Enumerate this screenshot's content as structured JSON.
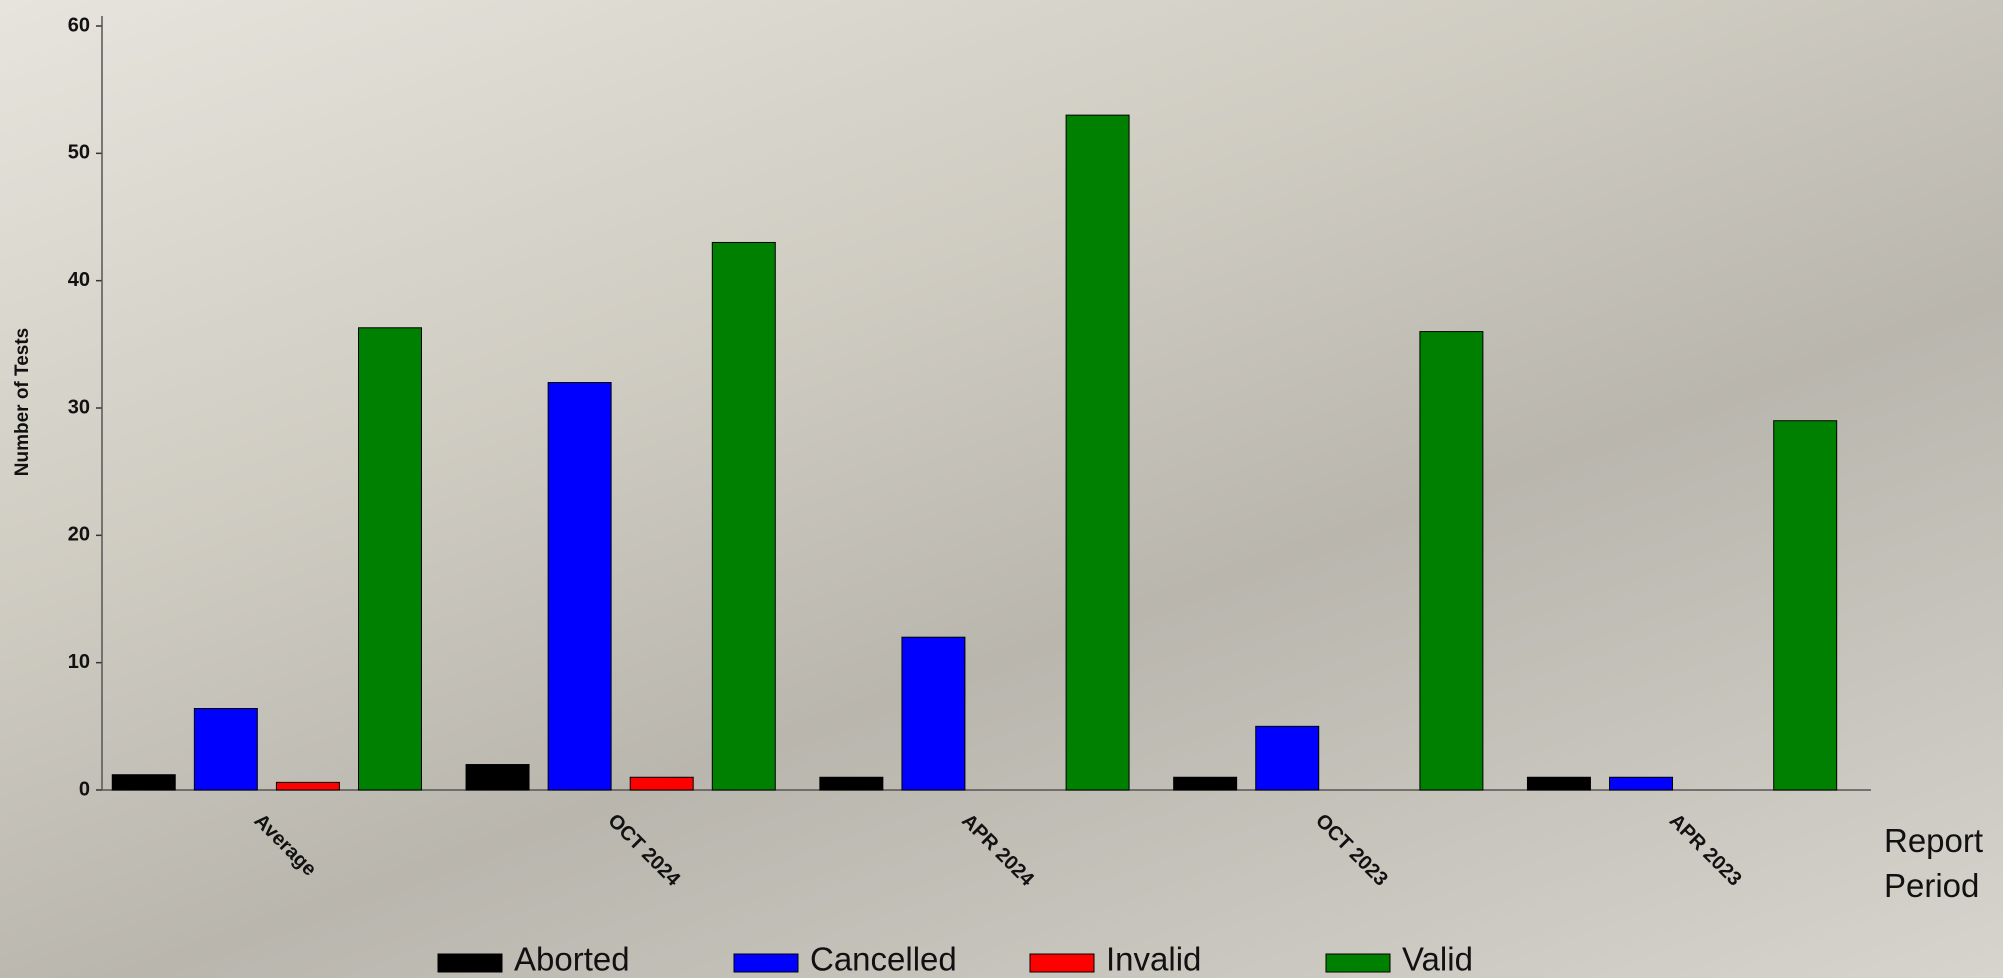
{
  "chart_data": {
    "type": "bar",
    "y_label": "Number of Tests",
    "x_label": "Report Period",
    "categories": [
      "Average",
      "OCT 2024",
      "APR 2024",
      "OCT 2023",
      "APR 2023"
    ],
    "series": [
      {
        "name": "Aborted",
        "color": "#000000",
        "values": [
          1.2,
          2,
          1,
          1,
          1
        ]
      },
      {
        "name": "Cancelled",
        "color": "#0000ff",
        "values": [
          6.4,
          32,
          12,
          5,
          1
        ]
      },
      {
        "name": "Invalid",
        "color": "#ff0000",
        "values": [
          0.6,
          1,
          0,
          0,
          0
        ]
      },
      {
        "name": "Valid",
        "color": "#008000",
        "values": [
          36.3,
          43,
          53,
          36,
          29
        ]
      }
    ],
    "ylim": [
      0,
      60
    ],
    "yticks": [
      0,
      10,
      20,
      30,
      40,
      50,
      60
    ],
    "legend": "bottom"
  }
}
